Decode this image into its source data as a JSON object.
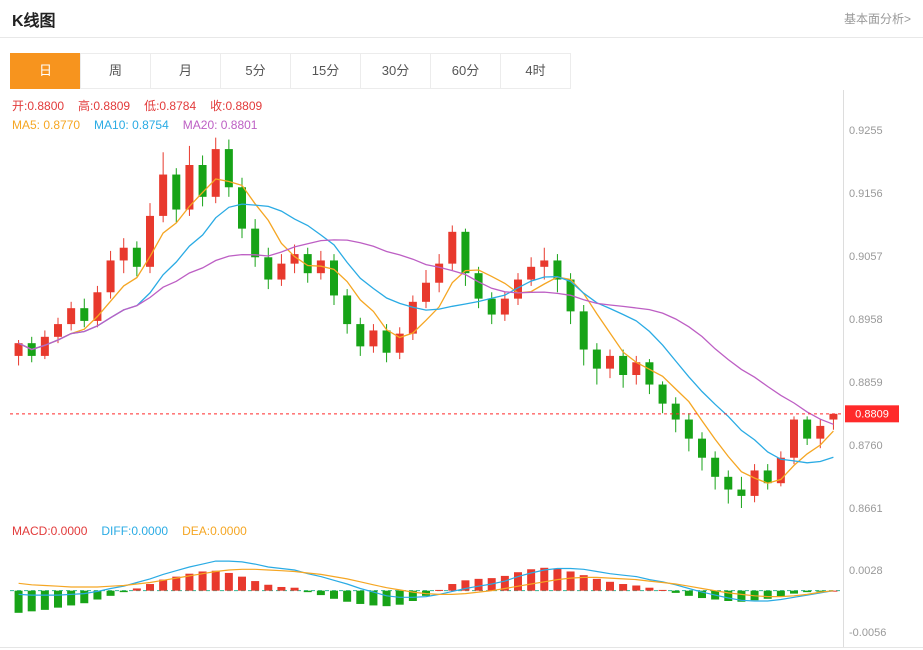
{
  "header": {
    "title": "K线图",
    "link_label": "基本面分析>"
  },
  "tabs": {
    "items": [
      "日",
      "周",
      "月",
      "5分",
      "15分",
      "30分",
      "60分",
      "4时"
    ],
    "active": "日"
  },
  "ohlc_legend": [
    {
      "name": "open",
      "label": "开:",
      "value": "0.8800",
      "color": "#e23b3b"
    },
    {
      "name": "high",
      "label": "高:",
      "value": "0.8809",
      "color": "#e23b3b"
    },
    {
      "name": "low",
      "label": "低:",
      "value": "0.8784",
      "color": "#e23b3b"
    },
    {
      "name": "close",
      "label": "收:",
      "value": "0.8809",
      "color": "#e23b3b"
    }
  ],
  "ma_legend": [
    {
      "name": "ma5",
      "label": "MA5: ",
      "value": "0.8770",
      "color": "#f5a623"
    },
    {
      "name": "ma10",
      "label": "MA10: ",
      "value": "0.8754",
      "color": "#2aabe4"
    },
    {
      "name": "ma20",
      "label": "MA20: ",
      "value": "0.8801",
      "color": "#bd5fc4"
    }
  ],
  "macd_legend": [
    {
      "name": "macd",
      "label": "MACD:",
      "value": "0.0000",
      "color": "#e23b3b"
    },
    {
      "name": "diff",
      "label": "DIFF:",
      "value": "0.0000",
      "color": "#2aabe4"
    },
    {
      "name": "dea",
      "label": "DEA:",
      "value": "0.0000",
      "color": "#f5a623"
    }
  ],
  "colors": {
    "up": "#e8392d",
    "down": "#17a317",
    "accent_tab": "#f7941e",
    "price_line": "#ff2a2a",
    "axis_text": "#999999",
    "axis_line": "#dddddd",
    "zero_line": "#35b597"
  },
  "chart_data": {
    "type": "candlestick",
    "title": "K线图",
    "timeframe": "日",
    "price_axis_ticks": [
      "0.9255",
      "0.9156",
      "0.9057",
      "0.8958",
      "0.8859",
      "0.8760",
      "0.8661"
    ],
    "current_price": 0.8809,
    "current_price_label": "0.8809",
    "ohlc": {
      "open": 0.88,
      "high": 0.8809,
      "low": 0.8784,
      "close": 0.8809
    },
    "ma": {
      "MA5": 0.877,
      "MA10": 0.8754,
      "MA20": 0.8801
    },
    "ma_periods": [
      5,
      10,
      20
    ],
    "candles_ohlc": [
      [
        0.89,
        0.8925,
        0.8885,
        0.892
      ],
      [
        0.892,
        0.893,
        0.889,
        0.89
      ],
      [
        0.89,
        0.894,
        0.8895,
        0.893
      ],
      [
        0.893,
        0.896,
        0.892,
        0.895
      ],
      [
        0.895,
        0.8985,
        0.894,
        0.8975
      ],
      [
        0.8975,
        0.899,
        0.8945,
        0.8955
      ],
      [
        0.8955,
        0.901,
        0.8945,
        0.9
      ],
      [
        0.9,
        0.9065,
        0.899,
        0.905
      ],
      [
        0.905,
        0.9085,
        0.903,
        0.907
      ],
      [
        0.907,
        0.908,
        0.9025,
        0.904
      ],
      [
        0.904,
        0.914,
        0.903,
        0.912
      ],
      [
        0.912,
        0.922,
        0.911,
        0.9185
      ],
      [
        0.9185,
        0.9195,
        0.911,
        0.913
      ],
      [
        0.913,
        0.923,
        0.912,
        0.92
      ],
      [
        0.92,
        0.9215,
        0.9135,
        0.915
      ],
      [
        0.915,
        0.9243,
        0.914,
        0.9225
      ],
      [
        0.9225,
        0.924,
        0.915,
        0.9165
      ],
      [
        0.9165,
        0.918,
        0.9085,
        0.91
      ],
      [
        0.91,
        0.9115,
        0.904,
        0.9055
      ],
      [
        0.9055,
        0.907,
        0.9005,
        0.902
      ],
      [
        0.902,
        0.906,
        0.901,
        0.9045
      ],
      [
        0.9045,
        0.9075,
        0.903,
        0.906
      ],
      [
        0.906,
        0.907,
        0.9015,
        0.903
      ],
      [
        0.903,
        0.9065,
        0.902,
        0.905
      ],
      [
        0.905,
        0.906,
        0.898,
        0.8995
      ],
      [
        0.8995,
        0.9005,
        0.8935,
        0.895
      ],
      [
        0.895,
        0.896,
        0.89,
        0.8915
      ],
      [
        0.8915,
        0.895,
        0.8905,
        0.894
      ],
      [
        0.894,
        0.895,
        0.889,
        0.8905
      ],
      [
        0.8905,
        0.8945,
        0.8895,
        0.8935
      ],
      [
        0.8935,
        0.8995,
        0.8925,
        0.8985
      ],
      [
        0.8985,
        0.9035,
        0.8975,
        0.9015
      ],
      [
        0.9015,
        0.906,
        0.9,
        0.9045
      ],
      [
        0.9045,
        0.9105,
        0.9035,
        0.9095
      ],
      [
        0.9095,
        0.91,
        0.901,
        0.903
      ],
      [
        0.903,
        0.904,
        0.8975,
        0.899
      ],
      [
        0.899,
        0.9,
        0.895,
        0.8965
      ],
      [
        0.8965,
        0.9,
        0.8955,
        0.899
      ],
      [
        0.899,
        0.903,
        0.898,
        0.902
      ],
      [
        0.902,
        0.9055,
        0.901,
        0.904
      ],
      [
        0.904,
        0.907,
        0.902,
        0.905
      ],
      [
        0.905,
        0.906,
        0.9,
        0.902
      ],
      [
        0.902,
        0.903,
        0.895,
        0.897
      ],
      [
        0.897,
        0.898,
        0.8885,
        0.891
      ],
      [
        0.891,
        0.892,
        0.8855,
        0.888
      ],
      [
        0.888,
        0.891,
        0.8865,
        0.89
      ],
      [
        0.89,
        0.891,
        0.885,
        0.887
      ],
      [
        0.887,
        0.89,
        0.8855,
        0.889
      ],
      [
        0.889,
        0.8895,
        0.884,
        0.8855
      ],
      [
        0.8855,
        0.886,
        0.881,
        0.8825
      ],
      [
        0.8825,
        0.8835,
        0.878,
        0.88
      ],
      [
        0.88,
        0.881,
        0.875,
        0.877
      ],
      [
        0.877,
        0.878,
        0.872,
        0.874
      ],
      [
        0.874,
        0.875,
        0.869,
        0.871
      ],
      [
        0.871,
        0.872,
        0.8668,
        0.869
      ],
      [
        0.869,
        0.871,
        0.8661,
        0.868
      ],
      [
        0.868,
        0.873,
        0.867,
        0.872
      ],
      [
        0.872,
        0.873,
        0.869,
        0.87
      ],
      [
        0.87,
        0.875,
        0.8695,
        0.874
      ],
      [
        0.874,
        0.8805,
        0.873,
        0.88
      ],
      [
        0.88,
        0.8805,
        0.876,
        0.877
      ],
      [
        0.877,
        0.88,
        0.8755,
        0.879
      ],
      [
        0.88,
        0.8809,
        0.8784,
        0.8809
      ]
    ],
    "macd_axis_ticks": [
      "0.0028",
      "-0.0056"
    ],
    "macd": {
      "macd_value": 0,
      "diff_value": 0,
      "dea_value": 0,
      "hist": [
        -0.003,
        -0.0028,
        -0.0026,
        -0.0023,
        -0.002,
        -0.0017,
        -0.0012,
        -0.0007,
        -0.0002,
        0.0003,
        0.0009,
        0.0015,
        0.0019,
        0.0023,
        0.0026,
        0.0027,
        0.0024,
        0.0019,
        0.0013,
        0.0008,
        0.0005,
        0.0004,
        -0.0002,
        -0.0006,
        -0.0011,
        -0.0015,
        -0.0018,
        -0.002,
        -0.0021,
        -0.0019,
        -0.0014,
        -0.0007,
        0.0001,
        0.0009,
        0.0014,
        0.0016,
        0.0017,
        0.002,
        0.0025,
        0.0029,
        0.0031,
        0.003,
        0.0026,
        0.0021,
        0.0016,
        0.0012,
        0.0009,
        0.0007,
        0.0004,
        0.0001,
        -0.0003,
        -0.0007,
        -0.001,
        -0.0012,
        -0.0014,
        -0.0015,
        -0.0013,
        -0.0011,
        -0.0008,
        -0.0004,
        -0.0002,
        -0.0001,
        0.0
      ],
      "diff": [
        -0.0005,
        -0.0006,
        -0.0006,
        -0.0006,
        -0.0005,
        -0.0004,
        -0.0001,
        0.0003,
        0.0006,
        0.0011,
        0.0016,
        0.0022,
        0.0027,
        0.0032,
        0.0036,
        0.004,
        0.004,
        0.0039,
        0.0036,
        0.0032,
        0.003,
        0.0028,
        0.0023,
        0.0019,
        0.0014,
        0.0009,
        0.0003,
        -0.0002,
        -0.0007,
        -0.0009,
        -0.0009,
        -0.0008,
        -0.0005,
        -0.0001,
        0.0003,
        0.0006,
        0.0009,
        0.0013,
        0.0019,
        0.0024,
        0.0028,
        0.003,
        0.003,
        0.0029,
        0.0026,
        0.0023,
        0.0021,
        0.0019,
        0.0015,
        0.0012,
        0.0008,
        0.0003,
        -0.0002,
        -0.0006,
        -0.001,
        -0.0013,
        -0.0014,
        -0.0014,
        -0.0012,
        -0.0009,
        -0.0006,
        -0.0003,
        0.0
      ],
      "dea": [
        0.001,
        0.0008,
        0.0007,
        0.0006,
        0.0005,
        0.0005,
        0.0005,
        0.0006,
        0.0007,
        0.0009,
        0.0011,
        0.0014,
        0.0017,
        0.002,
        0.0023,
        0.0026,
        0.0028,
        0.0029,
        0.0029,
        0.0028,
        0.0027,
        0.0026,
        0.0024,
        0.0022,
        0.0019,
        0.0016,
        0.0012,
        0.0008,
        0.0004,
        0.0001,
        -0.0002,
        -0.0004,
        -0.0005,
        -0.0005,
        -0.0004,
        -0.0002,
        0.0,
        0.0003,
        0.0006,
        0.0009,
        0.0012,
        0.0015,
        0.0017,
        0.0018,
        0.0018,
        0.0017,
        0.0016,
        0.0015,
        0.0013,
        0.0011,
        0.0009,
        0.0006,
        0.0003,
        0.0,
        -0.0003,
        -0.0005,
        -0.0007,
        -0.0008,
        -0.0008,
        -0.0007,
        -0.0005,
        -0.0002,
        0.0
      ]
    }
  }
}
